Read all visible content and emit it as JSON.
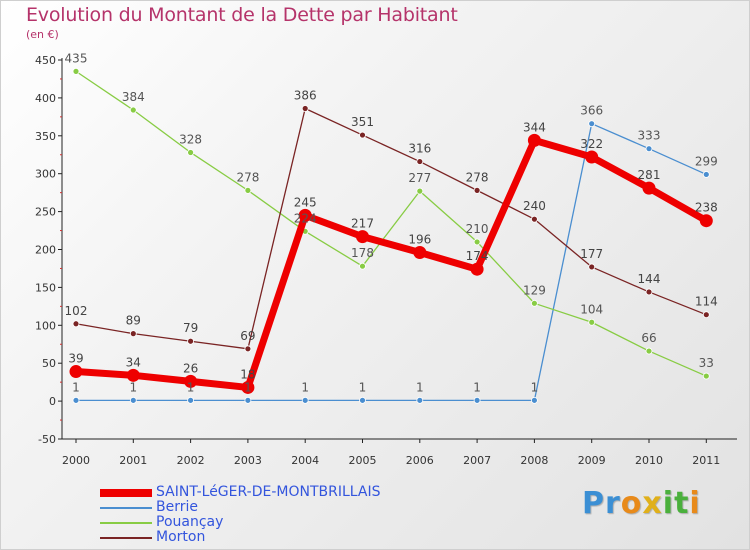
{
  "title": "Evolution du Montant de la Dette par Habitant",
  "unit": "(en €)",
  "logo": {
    "letters": [
      "P",
      "r",
      "o",
      "x",
      "i",
      "t",
      "i"
    ],
    "colors": [
      "#3b8fd4",
      "#3b8fd4",
      "#e88a1a",
      "#e0b01a",
      "#4ab03c",
      "#4ab03c",
      "#e88a1a"
    ]
  },
  "chart_data": {
    "type": "line",
    "x": [
      "2000",
      "2001",
      "2002",
      "2003",
      "2004",
      "2005",
      "2006",
      "2007",
      "2008",
      "2009",
      "2010",
      "2011"
    ],
    "ylim": [
      -50,
      450
    ],
    "yticks": [
      "-50",
      "0",
      "50",
      "100",
      "150",
      "200",
      "250",
      "300",
      "350",
      "400",
      "450"
    ],
    "grid": false,
    "legend_position": "bottom-left",
    "series": [
      {
        "name": "SAINT-LéGER-DE-MONTBRILLAIS",
        "color": "#ee0000",
        "labelColor": "#444444",
        "values": [
          39,
          34,
          26,
          18,
          245,
          217,
          196,
          174,
          344,
          322,
          281,
          238
        ],
        "labels": [
          "39",
          "34",
          "26",
          "18",
          "245",
          "217",
          "196",
          "174",
          "344",
          "322",
          "281",
          "238"
        ]
      },
      {
        "name": "Berrie",
        "color": "#4a8ed0",
        "labelColor": "#555555",
        "values": [
          1,
          1,
          1,
          1,
          1,
          1,
          1,
          1,
          1,
          366,
          333,
          299
        ],
        "labels": [
          "1",
          "1",
          "1",
          "1",
          "1",
          "1",
          "1",
          "1",
          "1",
          "366",
          "333",
          "299"
        ]
      },
      {
        "name": "Pouançay",
        "color": "#88cc44",
        "labelColor": "#555555",
        "values": [
          435,
          384,
          328,
          278,
          224,
          178,
          277,
          210,
          129,
          104,
          66,
          33
        ],
        "labels": [
          "435",
          "384",
          "328",
          "278",
          "224",
          "178",
          "277",
          "210",
          "129",
          "104",
          "66",
          "33"
        ]
      },
      {
        "name": "Morton",
        "color": "#7a2424",
        "labelColor": "#444444",
        "values": [
          102,
          89,
          79,
          69,
          386,
          351,
          316,
          278,
          240,
          177,
          144,
          114
        ],
        "labels": [
          "102",
          "89",
          "79",
          "69",
          "386",
          "351",
          "316",
          "278",
          "240",
          "177",
          "144",
          "114"
        ]
      }
    ]
  }
}
